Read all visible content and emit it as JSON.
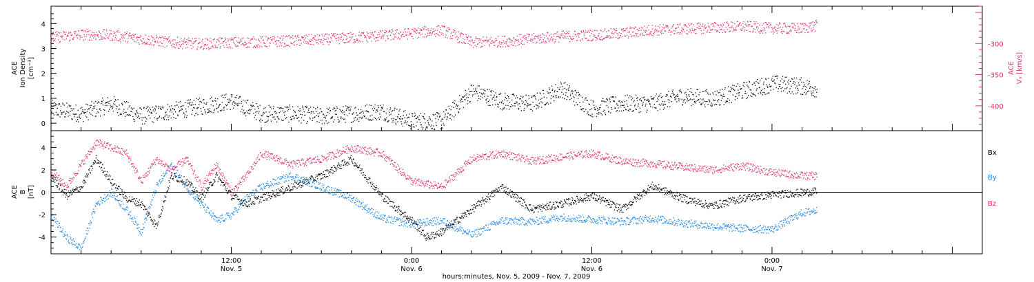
{
  "colors": {
    "density": "#000000",
    "vx": "#e0306a",
    "bx": "#000000",
    "by": "#1e88e5",
    "bz": "#e0306a",
    "axis": "#000000"
  },
  "chart_data": [
    {
      "type": "scatter",
      "title": "",
      "x_range": [
        "2009-11-05 00:00",
        "2009-11-07 14:00"
      ],
      "x_ticks": [
        {
          "time": "2009-11-05 12:00",
          "label": "12:00",
          "date": "Nov. 5"
        },
        {
          "time": "2009-11-06 00:00",
          "label": "0:00",
          "date": "Nov. 6"
        },
        {
          "time": "2009-11-06 12:00",
          "label": "12:00",
          "date": "Nov. 6"
        },
        {
          "time": "2009-11-07 00:00",
          "label": "0:00",
          "date": "Nov. 7"
        }
      ],
      "ylabel_lines": [
        "ACE",
        "Ion Density",
        "[cm⁻³]"
      ],
      "ylim": [
        -0.3,
        4.7
      ],
      "y_ticks": [
        "0",
        "1",
        "2",
        "3",
        "4"
      ],
      "y2label_lines": [
        "ACE",
        "Vₓ [km/s]"
      ],
      "y2lim": [
        -440,
        -240
      ],
      "y2_ticks": [
        "-300",
        "-350",
        "-400"
      ],
      "series": [
        {
          "name": "Ion Density",
          "axis": "left",
          "points": [
            [
              "2009-11-05 00:00",
              0.6
            ],
            [
              "2009-11-05 02:00",
              0.4
            ],
            [
              "2009-11-05 04:00",
              0.8
            ],
            [
              "2009-11-05 06:00",
              0.3
            ],
            [
              "2009-11-05 08:00",
              0.5
            ],
            [
              "2009-11-05 10:00",
              0.7
            ],
            [
              "2009-11-05 12:00",
              0.9
            ],
            [
              "2009-11-05 14:00",
              0.4
            ],
            [
              "2009-11-05 16:00",
              0.4
            ],
            [
              "2009-11-05 18:00",
              0.3
            ],
            [
              "2009-11-05 20:00",
              0.4
            ],
            [
              "2009-11-05 22:00",
              0.5
            ],
            [
              "2009-11-06 00:00",
              0.1
            ],
            [
              "2009-11-06 02:00",
              0.1
            ],
            [
              "2009-11-06 04:00",
              1.3
            ],
            [
              "2009-11-06 06:00",
              0.9
            ],
            [
              "2009-11-06 08:00",
              0.8
            ],
            [
              "2009-11-06 10:00",
              1.4
            ],
            [
              "2009-11-06 12:00",
              0.6
            ],
            [
              "2009-11-06 14:00",
              0.8
            ],
            [
              "2009-11-06 16:00",
              0.8
            ],
            [
              "2009-11-06 18:00",
              1.1
            ],
            [
              "2009-11-06 20:00",
              1.0
            ],
            [
              "2009-11-06 22:00",
              1.3
            ],
            [
              "2009-11-07 00:00",
              1.6
            ],
            [
              "2009-11-07 02:00",
              1.5
            ],
            [
              "2009-11-07 03:00",
              1.4
            ]
          ]
        },
        {
          "name": "Vx",
          "axis": "right",
          "points": [
            [
              "2009-11-05 00:00",
              -290
            ],
            [
              "2009-11-05 02:00",
              -285
            ],
            [
              "2009-11-05 04:00",
              -286
            ],
            [
              "2009-11-05 06:00",
              -292
            ],
            [
              "2009-11-05 08:00",
              -298
            ],
            [
              "2009-11-05 10:00",
              -300
            ],
            [
              "2009-11-05 12:00",
              -298
            ],
            [
              "2009-11-05 14:00",
              -297
            ],
            [
              "2009-11-05 16:00",
              -295
            ],
            [
              "2009-11-05 18:00",
              -293
            ],
            [
              "2009-11-05 20:00",
              -290
            ],
            [
              "2009-11-05 22:00",
              -287
            ],
            [
              "2009-11-06 00:00",
              -283
            ],
            [
              "2009-11-06 02:00",
              -278
            ],
            [
              "2009-11-06 04:00",
              -298
            ],
            [
              "2009-11-06 06:00",
              -296
            ],
            [
              "2009-11-06 08:00",
              -292
            ],
            [
              "2009-11-06 10:00",
              -288
            ],
            [
              "2009-11-06 12:00",
              -286
            ],
            [
              "2009-11-06 14:00",
              -283
            ],
            [
              "2009-11-06 16:00",
              -278
            ],
            [
              "2009-11-06 18:00",
              -276
            ],
            [
              "2009-11-06 20:00",
              -274
            ],
            [
              "2009-11-06 22:00",
              -272
            ],
            [
              "2009-11-07 00:00",
              -275
            ],
            [
              "2009-11-07 02:00",
              -275
            ],
            [
              "2009-11-07 03:00",
              -270
            ]
          ]
        }
      ]
    },
    {
      "type": "scatter",
      "title": "",
      "ylabel_lines": [
        "ACE",
        "B",
        "[nT]"
      ],
      "ylim": [
        -5.5,
        5.5
      ],
      "y_ticks": [
        "4",
        "2",
        "0",
        "-2",
        "-4"
      ],
      "legend_position": "right",
      "zero_line": true,
      "series": [
        {
          "name": "Bx",
          "points": [
            [
              "2009-11-05 00:00",
              1.5
            ],
            [
              "2009-11-05 01:00",
              -0.3
            ],
            [
              "2009-11-05 02:00",
              0.5
            ],
            [
              "2009-11-05 03:00",
              3.0
            ],
            [
              "2009-11-05 04:00",
              1.0
            ],
            [
              "2009-11-05 05:00",
              -0.5
            ],
            [
              "2009-11-05 06:00",
              -1.0
            ],
            [
              "2009-11-05 07:00",
              -3.0
            ],
            [
              "2009-11-05 08:00",
              1.5
            ],
            [
              "2009-11-05 09:00",
              1.0
            ],
            [
              "2009-11-05 10:00",
              -0.5
            ],
            [
              "2009-11-05 11:00",
              1.5
            ],
            [
              "2009-11-05 12:00",
              -0.3
            ],
            [
              "2009-11-05 13:00",
              -1.0
            ],
            [
              "2009-11-05 14:00",
              -0.5
            ],
            [
              "2009-11-05 16:00",
              0.5
            ],
            [
              "2009-11-05 18:00",
              1.5
            ],
            [
              "2009-11-05 20:00",
              3.0
            ],
            [
              "2009-11-05 22:00",
              -0.3
            ],
            [
              "2009-11-06 00:00",
              -2.5
            ],
            [
              "2009-11-06 01:00",
              -4.0
            ],
            [
              "2009-11-06 02:00",
              -3.5
            ],
            [
              "2009-11-06 04:00",
              -1.5
            ],
            [
              "2009-11-06 06:00",
              0.5
            ],
            [
              "2009-11-06 08:00",
              -1.5
            ],
            [
              "2009-11-06 10:00",
              -1.0
            ],
            [
              "2009-11-06 12:00",
              -0.3
            ],
            [
              "2009-11-06 14:00",
              -1.5
            ],
            [
              "2009-11-06 16:00",
              0.6
            ],
            [
              "2009-11-06 18:00",
              -0.5
            ],
            [
              "2009-11-06 20:00",
              -1.2
            ],
            [
              "2009-11-06 22:00",
              -0.5
            ],
            [
              "2009-11-07 00:00",
              -0.2
            ],
            [
              "2009-11-07 02:00",
              0.0
            ],
            [
              "2009-11-07 03:00",
              0.1
            ]
          ]
        },
        {
          "name": "By",
          "points": [
            [
              "2009-11-05 00:00",
              -2.0
            ],
            [
              "2009-11-05 01:00",
              -4.0
            ],
            [
              "2009-11-05 02:00",
              -5.0
            ],
            [
              "2009-11-05 03:00",
              -1.0
            ],
            [
              "2009-11-05 04:00",
              0.0
            ],
            [
              "2009-11-05 05:00",
              -1.5
            ],
            [
              "2009-11-05 06:00",
              -3.5
            ],
            [
              "2009-11-05 07:00",
              0.5
            ],
            [
              "2009-11-05 08:00",
              2.5
            ],
            [
              "2009-11-05 09:00",
              0.5
            ],
            [
              "2009-11-05 10:00",
              -1.0
            ],
            [
              "2009-11-05 11:00",
              -2.5
            ],
            [
              "2009-11-05 12:00",
              -2.0
            ],
            [
              "2009-11-05 13:00",
              -0.5
            ],
            [
              "2009-11-05 14:00",
              0.5
            ],
            [
              "2009-11-05 16:00",
              1.5
            ],
            [
              "2009-11-05 18:00",
              0.5
            ],
            [
              "2009-11-05 20:00",
              -0.5
            ],
            [
              "2009-11-05 22:00",
              -2.3
            ],
            [
              "2009-11-06 00:00",
              -2.8
            ],
            [
              "2009-11-06 02:00",
              -2.5
            ],
            [
              "2009-11-06 04:00",
              -3.8
            ],
            [
              "2009-11-06 06:00",
              -2.5
            ],
            [
              "2009-11-06 08:00",
              -2.6
            ],
            [
              "2009-11-06 10:00",
              -2.2
            ],
            [
              "2009-11-06 12:00",
              -2.4
            ],
            [
              "2009-11-06 14:00",
              -2.6
            ],
            [
              "2009-11-06 16:00",
              -2.3
            ],
            [
              "2009-11-06 18:00",
              -2.7
            ],
            [
              "2009-11-06 20:00",
              -3.0
            ],
            [
              "2009-11-06 22:00",
              -3.2
            ],
            [
              "2009-11-07 00:00",
              -3.3
            ],
            [
              "2009-11-07 02:00",
              -1.8
            ],
            [
              "2009-11-07 03:00",
              -1.6
            ]
          ]
        },
        {
          "name": "Bz",
          "points": [
            [
              "2009-11-05 00:00",
              2.0
            ],
            [
              "2009-11-05 01:00",
              0.5
            ],
            [
              "2009-11-05 02:00",
              2.5
            ],
            [
              "2009-11-05 03:00",
              4.5
            ],
            [
              "2009-11-05 04:00",
              4.0
            ],
            [
              "2009-11-05 05:00",
              3.5
            ],
            [
              "2009-11-05 06:00",
              1.0
            ],
            [
              "2009-11-05 07:00",
              3.0
            ],
            [
              "2009-11-05 08:00",
              2.0
            ],
            [
              "2009-11-05 09:00",
              3.0
            ],
            [
              "2009-11-05 10:00",
              0.5
            ],
            [
              "2009-11-05 11:00",
              2.5
            ],
            [
              "2009-11-05 12:00",
              0.0
            ],
            [
              "2009-11-05 13:00",
              1.5
            ],
            [
              "2009-11-05 14:00",
              3.5
            ],
            [
              "2009-11-05 16:00",
              2.5
            ],
            [
              "2009-11-05 18:00",
              3.0
            ],
            [
              "2009-11-05 20:00",
              4.0
            ],
            [
              "2009-11-05 22:00",
              3.5
            ],
            [
              "2009-11-06 00:00",
              1.0
            ],
            [
              "2009-11-06 02:00",
              0.5
            ],
            [
              "2009-11-06 04:00",
              3.0
            ],
            [
              "2009-11-06 06:00",
              3.5
            ],
            [
              "2009-11-06 08:00",
              2.8
            ],
            [
              "2009-11-06 10:00",
              3.2
            ],
            [
              "2009-11-06 12:00",
              3.5
            ],
            [
              "2009-11-06 14:00",
              2.8
            ],
            [
              "2009-11-06 16:00",
              2.6
            ],
            [
              "2009-11-06 18:00",
              2.3
            ],
            [
              "2009-11-06 20:00",
              2.0
            ],
            [
              "2009-11-06 22:00",
              2.4
            ],
            [
              "2009-11-07 00:00",
              1.8
            ],
            [
              "2009-11-07 02:00",
              1.5
            ],
            [
              "2009-11-07 03:00",
              1.5
            ]
          ]
        }
      ]
    }
  ],
  "xlabel": "hours:minutes, Nov.  5, 2009 - Nov.  7, 2009"
}
